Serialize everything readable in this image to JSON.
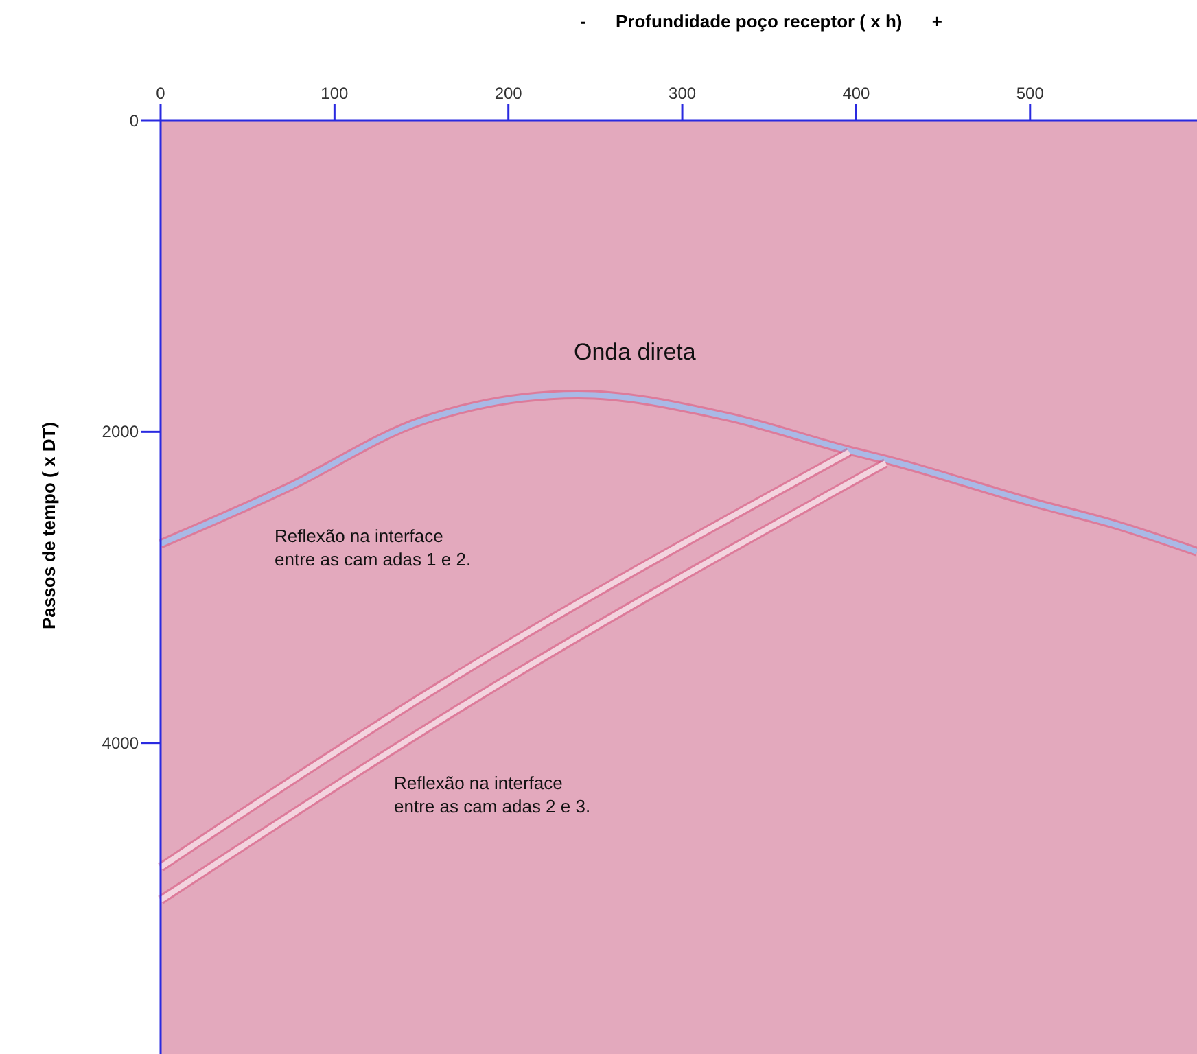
{
  "chart_data": {
    "type": "line",
    "xlabel": "-      Profundidade poço receptor ( x h)      +",
    "ylabel": "Passos de tempo ( x DT)",
    "xlim": [
      0,
      596
    ],
    "xticks": [
      0,
      100,
      200,
      300,
      400,
      500
    ],
    "ylim": [
      6000,
      0
    ],
    "yticks": [
      0,
      2000,
      4000
    ],
    "series": [
      {
        "x": [
          0,
          71,
          150,
          240,
          325,
          396,
          421,
          500,
          550,
          596
        ],
        "values": [
          2720,
          2370,
          1930,
          1760,
          1900,
          2120,
          2190,
          2450,
          2600,
          2770
        ],
        "color": "#a9b9e6"
      },
      {
        "x": [
          0,
          161,
          396
        ],
        "values": [
          4800,
          3630,
          2130
        ],
        "color": "#f3d3de"
      },
      {
        "x": [
          0,
          180,
          417
        ],
        "values": [
          5010,
          3720,
          2200
        ],
        "color": "#f3d3de"
      }
    ],
    "annotations": [
      "Onda direta",
      "Reflexão na interface\nentre as cam adas 1  e 2.",
      "Reflexão na interface\nentre as cam adas 2  e 3."
    ],
    "line_style": "solid",
    "marker": "none"
  }
}
